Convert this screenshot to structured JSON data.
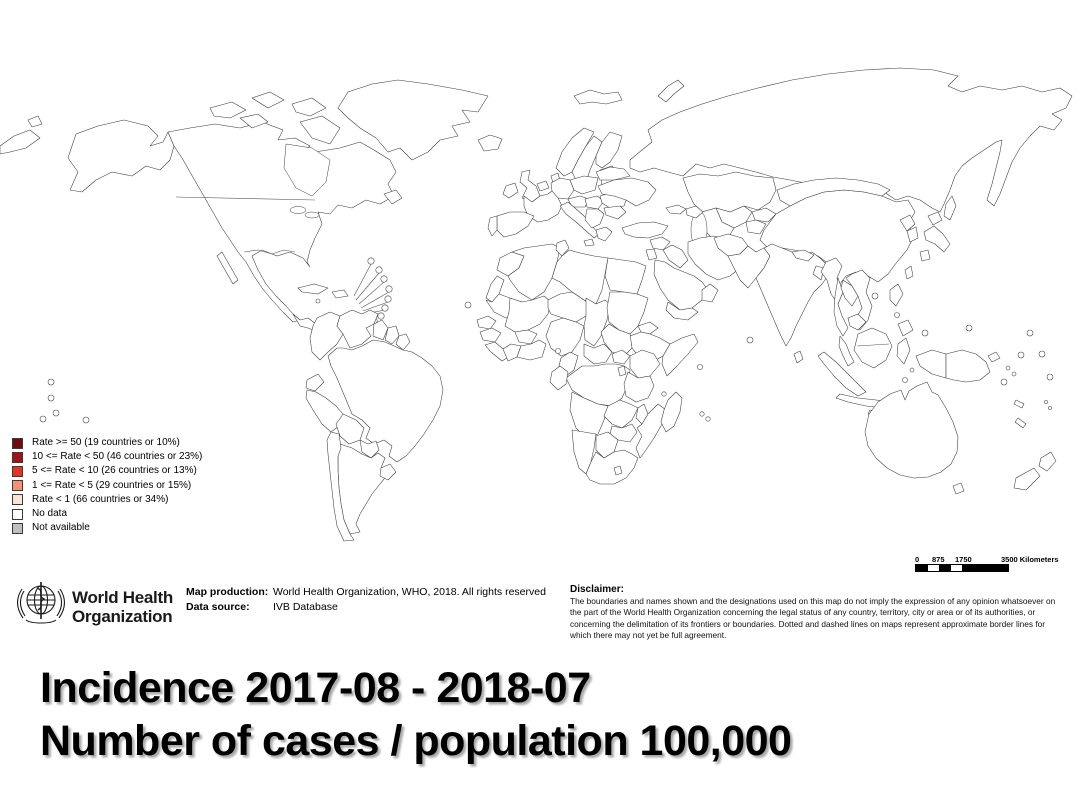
{
  "title": {
    "line1": "Incidence 2017-08 - 2018-07",
    "line2": "Number of cases / population 100,000"
  },
  "legend": {
    "items": [
      {
        "key": "rate_ge_50",
        "label": "Rate >= 50 (19 countries or 10%)"
      },
      {
        "key": "rate_10_50",
        "label": "10 <= Rate < 50 (46 countries or 23%)"
      },
      {
        "key": "rate_5_10",
        "label": "5 <= Rate < 10 (26 countries or 13%)"
      },
      {
        "key": "rate_1_5",
        "label": "1 <= Rate < 5 (29 countries or 15%)"
      },
      {
        "key": "rate_lt_1",
        "label": "Rate < 1 (66 countries or 34%)"
      },
      {
        "key": "no_data",
        "label": "No data"
      },
      {
        "key": "not_available",
        "label": "Not available"
      }
    ]
  },
  "footer": {
    "who_name_line1": "World Health",
    "who_name_line2": "Organization",
    "map_production_label": "Map production:",
    "map_production_value": "World Health Organization, WHO, 2018. All rights reserved",
    "data_source_label": "Data source:",
    "data_source_value": "IVB Database",
    "disclaimer_label": "Disclaimer:",
    "disclaimer_text": "The boundaries and names shown and the designations used on this map do not imply the expression of any opinion whatsoever on the part of the World Health Organization concerning the legal status of any country, territory, city or area or of its authorities, or concerning the delimitation of its frontiers or boundaries. Dotted and dashed lines on maps represent approximate border lines for which there may not yet be full agreement."
  },
  "scalebar": {
    "ticks": [
      {
        "label": "0",
        "x": 0
      },
      {
        "label": "875",
        "x": 17
      },
      {
        "label": "1750",
        "x": 40
      },
      {
        "label": "3500 Kilometers",
        "x": 86
      }
    ]
  },
  "map": {
    "palette": {
      "rate_ge_50": "#6e0a10",
      "rate_10_50": "#a31216",
      "rate_5_10": "#e53427",
      "rate_1_5": "#f49272",
      "rate_lt_1": "#fbe3da",
      "no_data": "#ffffff",
      "not_available": "#bfbfbf"
    },
    "regions": {
      "russia": "rate_10_50",
      "alaska": "rate_lt_1",
      "north-america": "rate_lt_1",
      "baja": "rate_lt_1",
      "canadian-arctic": "rate_lt_1",
      "newfoundland": "rate_lt_1",
      "greenland": "rate_1_5",
      "iceland": "rate_1_5",
      "svalbard": "rate_1_5",
      "central-america": "rate_lt_1",
      "cuba": "rate_lt_1",
      "hispaniola": "rate_lt_1",
      "jamaica": "rate_lt_1",
      "dot-white": "no_data",
      "dot-pink": "rate_lt_1",
      "dot-salmon": "rate_1_5",
      "dot-red": "rate_5_10",
      "dot-dark": "rate_10_50",
      "colombia": "rate_1_5",
      "venezuela": "rate_ge_50",
      "guyana": "no_data",
      "suriname": "rate_lt_1",
      "french-guiana": "rate_10_50",
      "ecuador": "rate_lt_1",
      "peru": "rate_lt_1",
      "brazil": "rate_5_10",
      "bolivia": "rate_lt_1",
      "paraguay": "rate_lt_1",
      "chile": "rate_lt_1",
      "argentina": "rate_lt_1",
      "uruguay": "rate_lt_1",
      "norway": "rate_1_5",
      "sweden": "rate_5_10",
      "finland": "rate_1_5",
      "baltics": "rate_5_10",
      "denmark": "rate_5_10",
      "uk": "rate_10_50",
      "ireland": "rate_10_50",
      "benelux": "rate_5_10",
      "germany": "rate_5_10",
      "poland": "rate_1_5",
      "france": "rate_10_50",
      "spain": "rate_1_5",
      "portugal": "rate_lt_1",
      "czech-austria": "rate_5_10",
      "hungary-slovakia": "rate_1_5",
      "italy": "rate_10_50",
      "balkans": "rate_10_50",
      "greece": "rate_10_50",
      "romania": "rate_ge_50",
      "bulgaria": "rate_10_50",
      "ukraine": "rate_ge_50",
      "belarus": "rate_10_50",
      "kazakhstan": "rate_lt_1",
      "uzbekistan": "rate_lt_1",
      "turkmenistan": "rate_lt_1",
      "kyrgyzstan": "rate_ge_50",
      "tajikistan": "not_available",
      "georgia": "rate_10_50",
      "azerbaijan": "rate_ge_50",
      "turkey": "rate_5_10",
      "syria": "rate_10_50",
      "jordan-israel": "rate_5_10",
      "iraq": "rate_5_10",
      "iran": "rate_lt_1",
      "saudi-arabia": "rate_lt_1",
      "yemen": "rate_ge_50",
      "oman": "rate_1_5",
      "afghanistan": "rate_ge_50",
      "pakistan": "rate_10_50",
      "india": "rate_10_50",
      "nepal": "rate_5_10",
      "bangladesh": "rate_ge_50",
      "sri-lanka": "rate_1_5",
      "myanmar": "rate_ge_50",
      "thailand": "rate_5_10",
      "laos": "rate_ge_50",
      "vietnam": "rate_5_10",
      "cambodia": "rate_lt_1",
      "malaysia": "rate_ge_50",
      "indonesia": "rate_ge_50",
      "philippines": "rate_ge_50",
      "taiwan": "rate_1_5",
      "hainan": "rate_5_10",
      "china": "rate_1_5",
      "mongolia": "rate_1_5",
      "north-korea": "rate_lt_1",
      "south-korea": "no_data",
      "japan": "rate_1_5",
      "australia": "rate_1_5",
      "tasmania": "rate_1_5",
      "new-zealand": "rate_5_10",
      "west-papua": "rate_10_50",
      "papua-new-guinea": "rate_1_5",
      "new-britain": "rate_10_50",
      "solomon": "rate_10_50",
      "vanuatu": "rate_10_50",
      "morocco": "rate_lt_1",
      "western-sahara": "not_available",
      "algeria": "rate_5_10",
      "tunisia": "rate_10_50",
      "libya": "rate_5_10",
      "egypt": "rate_lt_1",
      "mauritania": "rate_lt_1",
      "senegal": "rate_1_5",
      "guinea": "rate_ge_50",
      "sierra-leone-liberia": "rate_ge_50",
      "mali": "rate_5_10",
      "burkina-faso": "rate_10_50",
      "ivory-coast": "rate_10_50",
      "ghana-togo-benin": "rate_10_50",
      "niger": "rate_5_10",
      "nigeria": "rate_ge_50",
      "chad": "rate_ge_50",
      "sudan": "rate_ge_50",
      "eritrea": "rate_ge_50",
      "ethiopia": "rate_10_50",
      "somalia": "rate_10_50",
      "south-sudan": "rate_ge_50",
      "central-african-republic": "rate_10_50",
      "cameroon": "rate_10_50",
      "uganda": "rate_ge_50",
      "kenya": "rate_1_5",
      "drc": "rate_10_50",
      "gabon-congo": "rate_5_10",
      "rwanda-burundi": "rate_ge_50",
      "tanzania": "rate_10_50",
      "angola": "rate_1_5",
      "zambia": "rate_5_10",
      "malawi": "rate_5_10",
      "mozambique": "rate_10_50",
      "zimbabwe": "rate_10_50",
      "namibia": "rate_10_50",
      "botswana": "rate_lt_1",
      "south-africa": "rate_1_5",
      "lesotho": "rate_lt_1",
      "madagascar": "rate_1_5"
    }
  }
}
